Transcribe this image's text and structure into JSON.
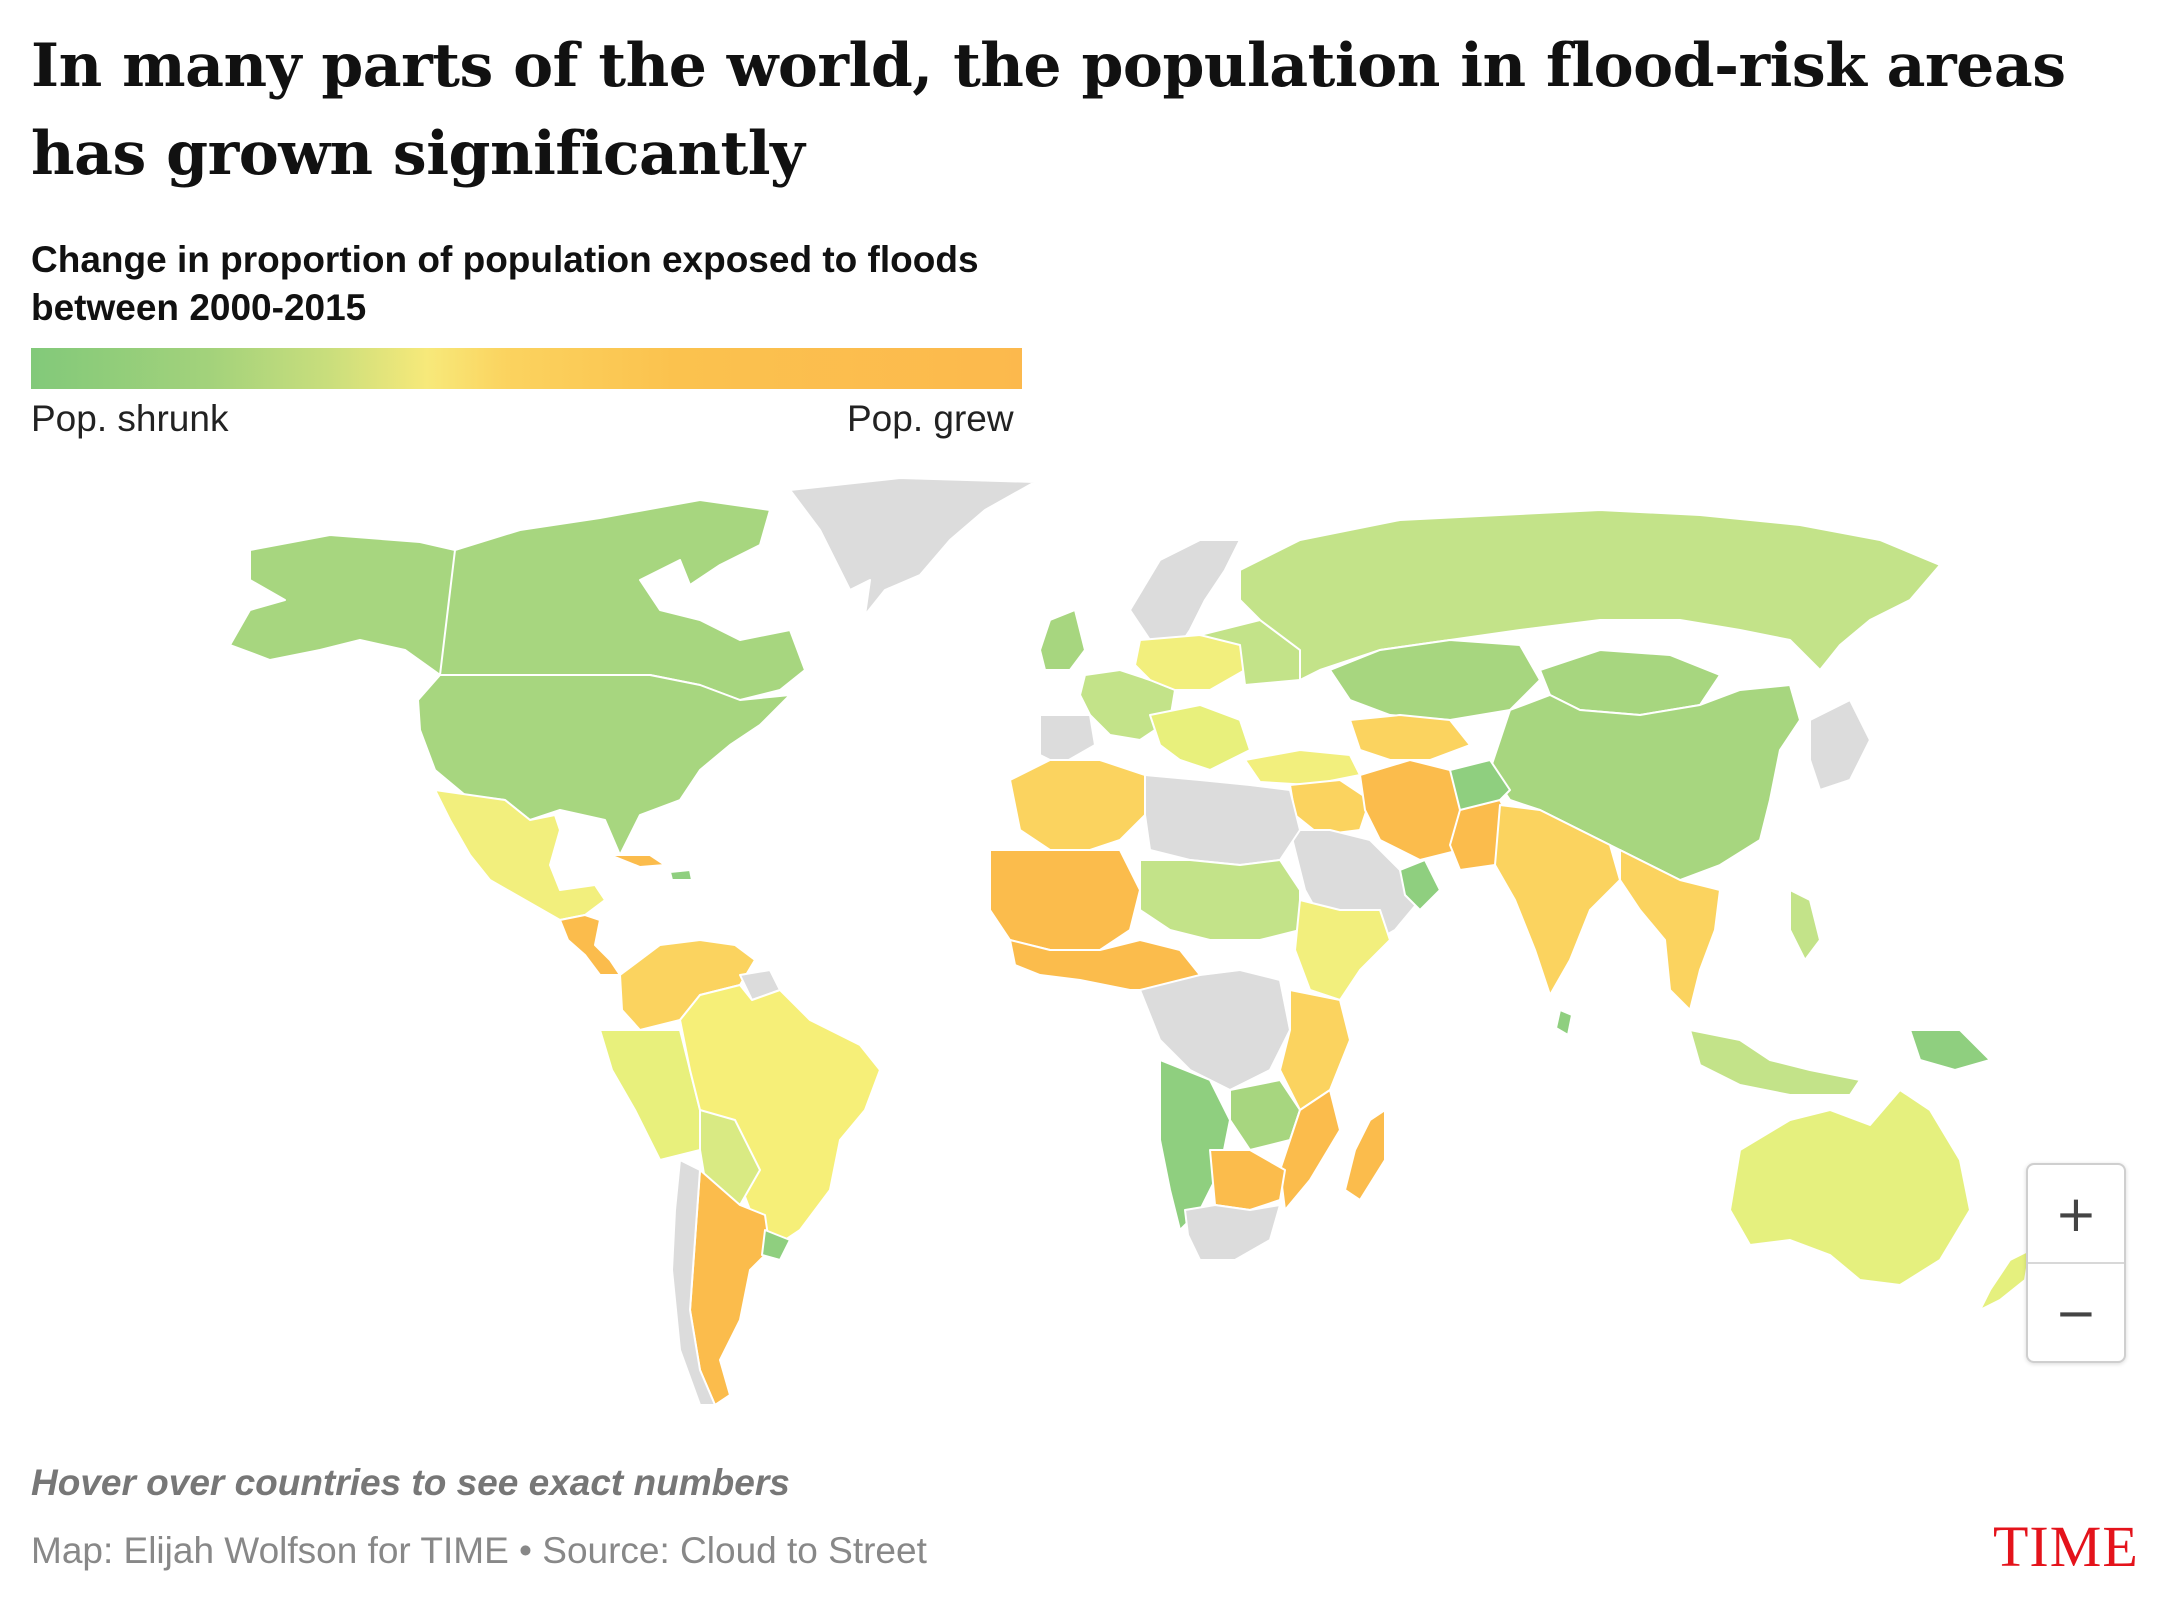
{
  "title": "In many parts of the world, the population in flood-risk areas has grown significantly",
  "legend": {
    "title": "Change in proportion of population exposed to floods between 2000-2015",
    "low_label": "Pop. shrunk",
    "high_label": "Pop. grew"
  },
  "map": {
    "colors": {
      "shrunk_strong": "#8fcf7f",
      "shrunk_light": "#c3e389",
      "neutral": "#f2ef7d",
      "grew_light": "#fbd35f",
      "grew_strong": "#fbbc4c",
      "no_data": "#dcdcdc"
    }
  },
  "zoom": {
    "in_icon": "+",
    "out_icon": "−"
  },
  "hint": "Hover over countries to see exact numbers",
  "credit": "Map: Elijah Wolfson for TIME • Source: Cloud to Street",
  "logo": "TIME"
}
